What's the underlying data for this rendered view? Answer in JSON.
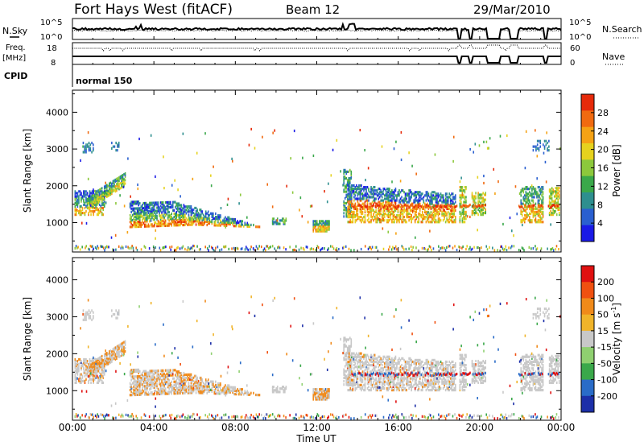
{
  "header": {
    "title": "Fort Hays West (fitACF)",
    "beam": "Beam 12",
    "date": "29/Mar/2010"
  },
  "top_panel": {
    "nsky_label": "N.Sky",
    "nsearch_label": "N.Search",
    "noise_tick_high": "10^5",
    "noise_tick_low": "10^0",
    "freq_label": "Freq.",
    "freq_unit": "[MHz]",
    "freq_tick_high": "18",
    "freq_tick_low": "8",
    "nave_label": "Nave",
    "nave_tick_high": "60",
    "nave_tick_low": "0",
    "cpid_label": "CPID",
    "cpid_value": "normal 150"
  },
  "chart_data": [
    {
      "type": "heatmap",
      "name": "power",
      "ylabel": "Slant Range [km]",
      "yticks": [
        "1000",
        "2000",
        "3000",
        "4000"
      ],
      "yticks_values": [
        1000,
        2000,
        3000,
        4000
      ],
      "ylim": [
        200,
        4600
      ],
      "xlim_hours": [
        0,
        24
      ],
      "colorbar": {
        "label": "Power [dB]",
        "ticks": [
          "4",
          "8",
          "12",
          "16",
          "20",
          "24",
          "28"
        ],
        "tick_values": [
          4,
          8,
          12,
          16,
          20,
          24,
          28
        ],
        "range": [
          0,
          32
        ],
        "colors": [
          "#1a1ae6",
          "#2a5fd0",
          "#2e8f8f",
          "#3aa84a",
          "#8cc83c",
          "#e6d21e",
          "#f5a214",
          "#f06a10",
          "#e62a0a"
        ]
      }
    },
    {
      "type": "heatmap",
      "name": "velocity",
      "ylabel": "Slant Range [km]",
      "yticks": [
        "1000",
        "2000",
        "3000",
        "4000"
      ],
      "yticks_values": [
        1000,
        2000,
        3000,
        4000
      ],
      "ylim": [
        200,
        4600
      ],
      "xlim_hours": [
        0,
        24
      ],
      "colorbar": {
        "label": "Velocity [m s^-1]",
        "ticks": [
          "200",
          "100",
          "50",
          "15",
          "-15",
          "-50",
          "-100",
          "-200"
        ],
        "colors": [
          "#1c2fa8",
          "#2a6cc8",
          "#3aa84a",
          "#8fd070",
          "#c8c8c8",
          "#f0b42a",
          "#f08a1a",
          "#f05010",
          "#e01010"
        ]
      }
    }
  ],
  "x_axis": {
    "ticks": [
      "00:00",
      "04:00",
      "08:00",
      "12:00",
      "16:00",
      "20:00",
      "00:00"
    ],
    "tick_hours": [
      0,
      4,
      8,
      12,
      16,
      20,
      24
    ],
    "label": "Time UT"
  }
}
